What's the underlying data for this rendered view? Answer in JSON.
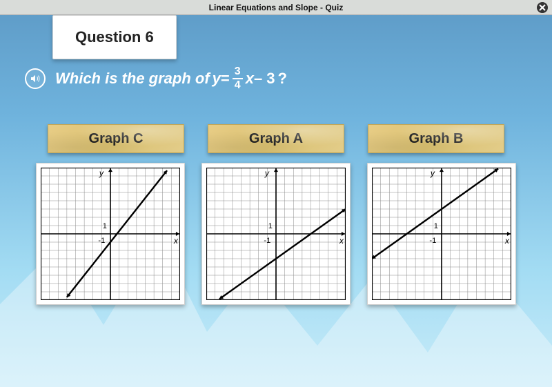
{
  "titlebar": {
    "text": "Linear Equations and Slope - Quiz"
  },
  "question_tab": "Question 6",
  "question": {
    "prefix": "Which is the graph of ",
    "eq_lhs_var": "y",
    "eq_equals": " = ",
    "eq_frac_num": "3",
    "eq_frac_den": "4",
    "eq_rhs_var": "x",
    "eq_tail": " – 3 ",
    "suffix": "?"
  },
  "options": [
    {
      "label": "Graph C"
    },
    {
      "label": "Graph A"
    },
    {
      "label": "Graph B"
    }
  ],
  "graph_style": {
    "type": "line",
    "xlim": [
      -8,
      8
    ],
    "ylim": [
      -8,
      8
    ],
    "tick_step": 1,
    "axis_color": "#000000",
    "grid_color": "#8a8a8a",
    "grid_width": 0.5,
    "axis_width": 1.6,
    "line_color": "#000000",
    "line_width": 2.4,
    "background_color": "#ffffff",
    "arrow_size": 5,
    "label_fontsize": 12,
    "tick_label_fontsize": 11,
    "axis_labels": {
      "x": "x",
      "y": "y"
    },
    "tick_labels": {
      "x": "-1",
      "y": "1"
    }
  },
  "graphs": [
    {
      "name": "graph-c",
      "slope": 1.333,
      "intercept": -1,
      "x_start": -5.0,
      "x_end": 6.5
    },
    {
      "name": "graph-a",
      "slope": 0.75,
      "intercept": -3,
      "x_start": -6.5,
      "x_end": 8.0
    },
    {
      "name": "graph-b",
      "slope": 0.75,
      "intercept": 3,
      "x_start": -8.0,
      "x_end": 6.5
    }
  ],
  "colors": {
    "sky_top": "#5d9ac6",
    "sky_bottom": "#c9ecf9",
    "tab_bg": "#ffffff",
    "label_bg": "#e0c880",
    "text_light": "#ffffff",
    "text_dark": "#222222"
  }
}
